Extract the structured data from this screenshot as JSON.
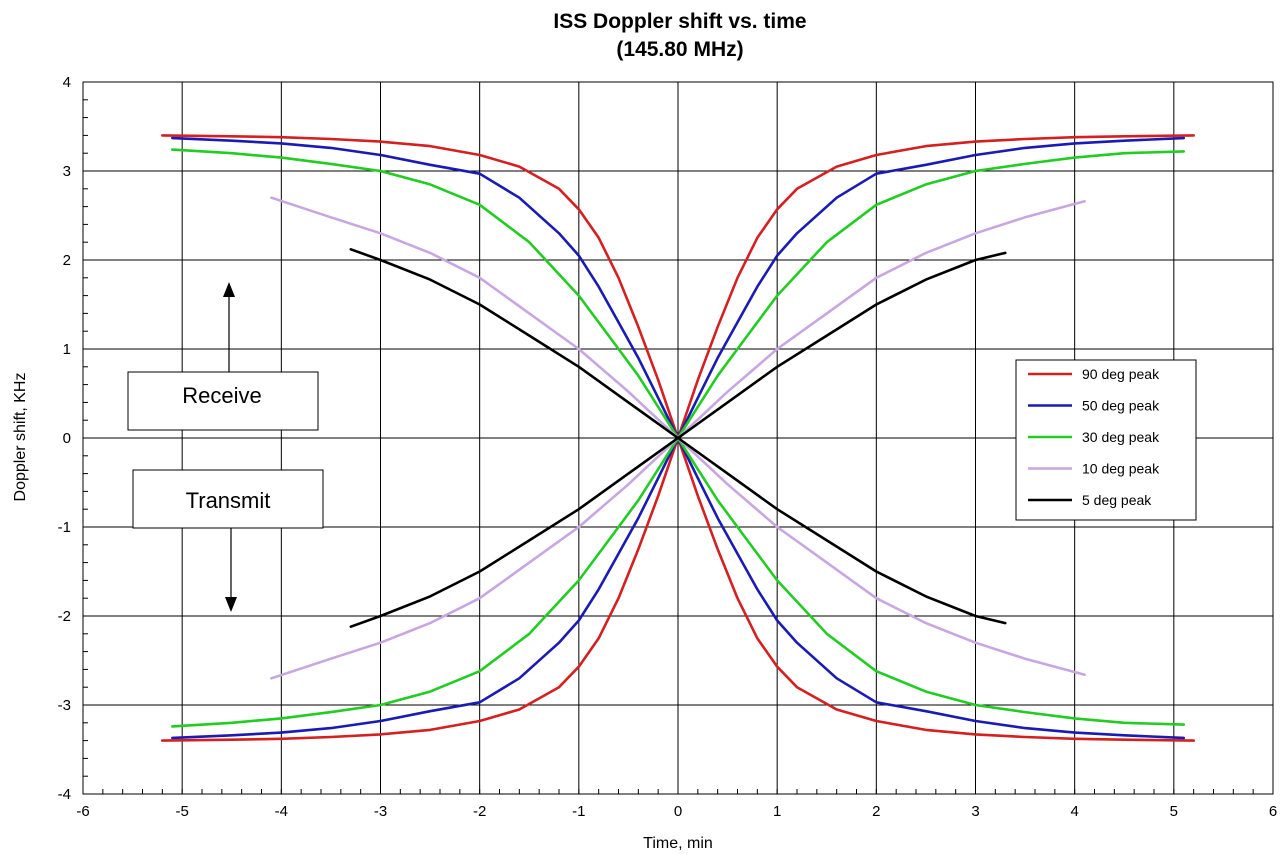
{
  "chart_data": {
    "type": "line",
    "title": "ISS Doppler shift vs. time",
    "subtitle": "(145.80 MHz)",
    "xlabel": "Time, min",
    "ylabel": "Doppler shift, KHz",
    "xlim": [
      -6,
      6
    ],
    "ylim": [
      -4,
      4
    ],
    "xticks": [
      -6,
      -5,
      -4,
      -3,
      -2,
      -1,
      0,
      1,
      2,
      3,
      4,
      5,
      6
    ],
    "yticks": [
      -4,
      -3,
      -2,
      -1,
      0,
      1,
      2,
      3,
      4
    ],
    "grid": true,
    "legend_position": "right",
    "series": [
      {
        "name": "90 deg peak",
        "color": "#d42020",
        "x": [
          -5.2,
          -4.5,
          -4.0,
          -3.5,
          -3.0,
          -2.5,
          -2.0,
          -1.6,
          -1.2,
          -1.0,
          -0.8,
          -0.6,
          -0.4,
          -0.2,
          0,
          0.2,
          0.4,
          0.6,
          0.8,
          1.0,
          1.2,
          1.6,
          2.0,
          2.5,
          3.0,
          3.5,
          4.0,
          4.5,
          5.2
        ],
        "y": [
          3.4,
          3.39,
          3.38,
          3.36,
          3.33,
          3.28,
          3.18,
          3.05,
          2.8,
          2.57,
          2.25,
          1.8,
          1.25,
          0.65,
          0,
          -0.65,
          -1.25,
          -1.8,
          -2.25,
          -2.57,
          -2.8,
          -3.05,
          -3.18,
          -3.28,
          -3.33,
          -3.36,
          -3.38,
          -3.39,
          -3.4
        ]
      },
      {
        "name": "50 deg peak",
        "color": "#1a1ab4",
        "x": [
          -5.1,
          -4.5,
          -4.0,
          -3.5,
          -3.0,
          -2.5,
          -2.0,
          -1.6,
          -1.2,
          -1.0,
          -0.8,
          -0.6,
          -0.4,
          -0.2,
          0,
          0.2,
          0.4,
          0.6,
          0.8,
          1.0,
          1.2,
          1.6,
          2.0,
          2.5,
          3.0,
          3.5,
          4.0,
          4.5,
          5.1
        ],
        "y": [
          3.37,
          3.34,
          3.31,
          3.26,
          3.18,
          3.07,
          2.97,
          2.7,
          2.3,
          2.05,
          1.7,
          1.3,
          0.9,
          0.45,
          0,
          -0.45,
          -0.9,
          -1.3,
          -1.7,
          -2.05,
          -2.3,
          -2.7,
          -2.97,
          -3.07,
          -3.18,
          -3.26,
          -3.31,
          -3.34,
          -3.37
        ]
      },
      {
        "name": "30 deg peak",
        "color": "#22cc22",
        "x": [
          -5.1,
          -4.5,
          -4.0,
          -3.5,
          -3.0,
          -2.5,
          -2.0,
          -1.5,
          -1.0,
          -0.7,
          -0.4,
          -0.2,
          0,
          0.2,
          0.4,
          0.7,
          1.0,
          1.5,
          2.0,
          2.5,
          3.0,
          3.5,
          4.0,
          4.5,
          5.1
        ],
        "y": [
          3.24,
          3.2,
          3.15,
          3.08,
          3.0,
          2.85,
          2.62,
          2.2,
          1.6,
          1.15,
          0.7,
          0.35,
          0,
          -0.35,
          -0.7,
          -1.15,
          -1.6,
          -2.2,
          -2.62,
          -2.85,
          -3.0,
          -3.08,
          -3.15,
          -3.2,
          -3.22
        ]
      },
      {
        "name": "10 deg peak",
        "color": "#c8a6e2",
        "x": [
          -4.1,
          -3.5,
          -3.0,
          -2.5,
          -2.0,
          -1.5,
          -1.0,
          -0.5,
          0,
          0.5,
          1.0,
          1.5,
          2.0,
          2.5,
          3.0,
          3.5,
          4.1
        ],
        "y": [
          2.7,
          2.48,
          2.3,
          2.08,
          1.8,
          1.4,
          1.0,
          0.52,
          0,
          -0.52,
          -1.0,
          -1.4,
          -1.8,
          -2.08,
          -2.3,
          -2.48,
          -2.66
        ]
      },
      {
        "name": "5 deg peak",
        "color": "#000000",
        "x": [
          -3.3,
          -3.0,
          -2.5,
          -2.0,
          -1.5,
          -1.0,
          -0.5,
          0,
          0.5,
          1.0,
          1.5,
          2.0,
          2.5,
          3.0,
          3.3
        ],
        "y": [
          2.12,
          2.0,
          1.78,
          1.5,
          1.15,
          0.8,
          0.4,
          0,
          -0.4,
          -0.8,
          -1.15,
          -1.5,
          -1.78,
          -2.0,
          -2.08
        ]
      }
    ],
    "annotations": {
      "receive_label": "Receive",
      "transmit_label": "Transmit"
    }
  }
}
